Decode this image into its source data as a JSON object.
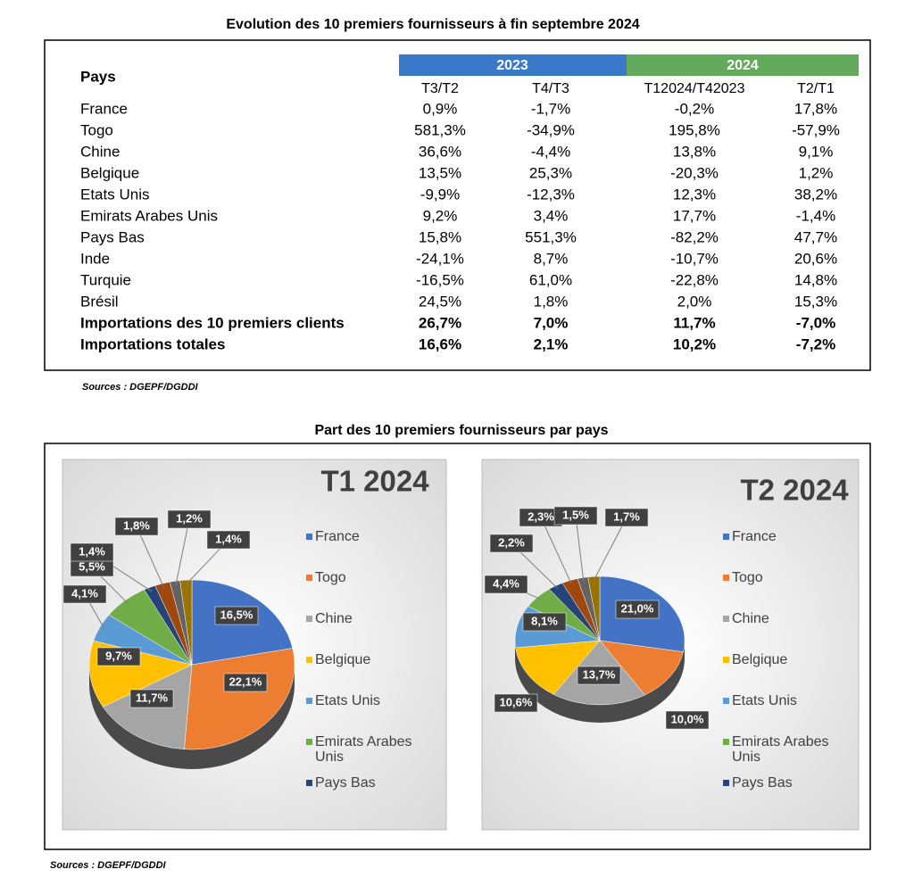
{
  "table_section": {
    "title": "Evolution des 10 premiers fournisseurs à fin septembre 2024",
    "header": "Pays",
    "groups": [
      "2023",
      "2024"
    ],
    "columns": [
      "T3/T2",
      "T4/T3",
      "T12024/T42023",
      "T2/T1"
    ],
    "rows": [
      [
        "France",
        "0,9%",
        "-1,7%",
        "-0,2%",
        "17,8%"
      ],
      [
        "Togo",
        "581,3%",
        "-34,9%",
        "195,8%",
        "-57,9%"
      ],
      [
        "Chine",
        "36,6%",
        "-4,4%",
        "13,8%",
        "9,1%"
      ],
      [
        "Belgique",
        "13,5%",
        "25,3%",
        "-20,3%",
        "1,2%"
      ],
      [
        "Etats Unis",
        "-9,9%",
        "-12,3%",
        "12,3%",
        "38,2%"
      ],
      [
        "Emirats Arabes Unis",
        "9,2%",
        "3,4%",
        "17,7%",
        "-1,4%"
      ],
      [
        "Pays Bas",
        "15,8%",
        "551,3%",
        "-82,2%",
        "47,7%"
      ],
      [
        "Inde",
        "-24,1%",
        "8,7%",
        "-10,7%",
        "20,6%"
      ],
      [
        "Turquie",
        "-16,5%",
        "61,0%",
        "-22,8%",
        "14,8%"
      ],
      [
        "Brésil",
        "24,5%",
        "1,8%",
        "2,0%",
        "15,3%"
      ],
      [
        "Importations des 10 premiers clients",
        "26,7%",
        "7,0%",
        "11,7%",
        "-7,0%"
      ],
      [
        "Importations totales",
        "16,6%",
        "2,1%",
        "10,2%",
        "-7,2%"
      ]
    ],
    "source": "Sources : DGEPF/DGDDI"
  },
  "chart_section": {
    "title": "Part des 10 premiers fournisseurs par pays",
    "source": "Sources : DGEPF/DGDDI"
  },
  "chart_data": [
    {
      "type": "pie",
      "title": "T1 2024",
      "categories": [
        "France",
        "Togo",
        "Chine",
        "Belgique",
        "Etats Unis",
        "Emirats Arabes Unis",
        "Pays Bas",
        null,
        null,
        null
      ],
      "values": [
        16.5,
        22.1,
        11.7,
        9.7,
        4.1,
        5.5,
        1.4,
        1.8,
        1.2,
        1.4
      ],
      "value_labels": [
        "16,5%",
        "22,1%",
        "11,7%",
        "9,7%",
        "4,1%",
        "5,5%",
        "1,4%",
        "1,8%",
        "1,2%",
        "1,4%"
      ],
      "colors": [
        "#4472c4",
        "#ed7d31",
        "#a5a5a5",
        "#ffc000",
        "#5b9bd5",
        "#70ad47",
        "#264478",
        "#9e480e",
        "#636363",
        "#997300"
      ]
    },
    {
      "type": "pie",
      "title": "T2 2024",
      "categories": [
        "France",
        "Togo",
        "Chine",
        "Belgique",
        "Etats Unis",
        "Emirats Arabes Unis",
        "Pays Bas",
        null,
        null,
        null
      ],
      "values": [
        21.0,
        10.0,
        13.7,
        10.6,
        8.1,
        4.4,
        2.2,
        2.3,
        1.5,
        1.7
      ],
      "value_labels": [
        "21,0%",
        "10,0%",
        "13,7%",
        "10,6%",
        "8,1%",
        "4,4%",
        "2,2%",
        "2,3%",
        "1,5%",
        "1,7%"
      ],
      "colors": [
        "#4472c4",
        "#ed7d31",
        "#a5a5a5",
        "#ffc000",
        "#5b9bd5",
        "#70ad47",
        "#264478",
        "#9e480e",
        "#636363",
        "#997300"
      ]
    }
  ]
}
